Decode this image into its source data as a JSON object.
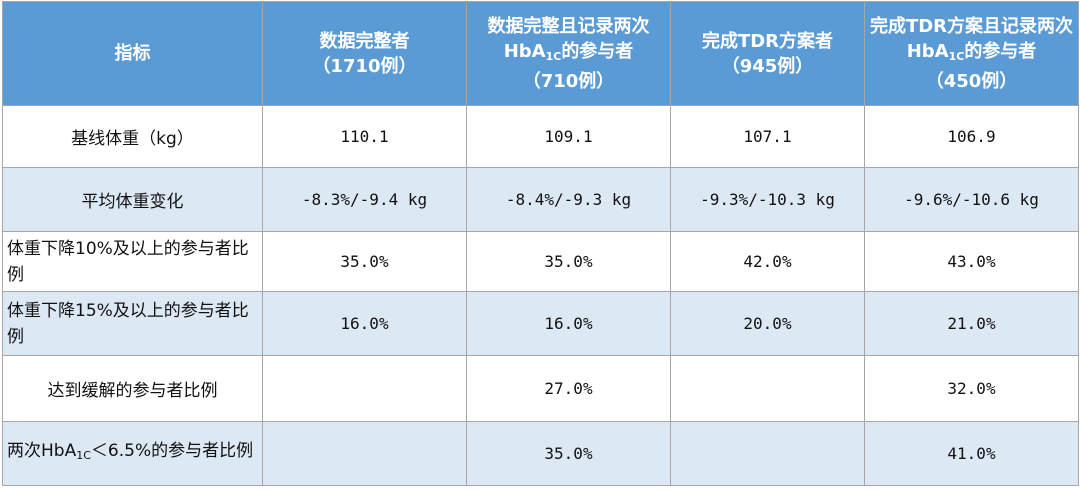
{
  "table": {
    "header": {
      "label": "指标",
      "columns": [
        {
          "name": "数据完整者",
          "count": "（1710例）"
        },
        {
          "name_pre": "数据完整且记录两次HbA",
          "name_sub": "1C",
          "name_post": "的参与者",
          "count": "（710例）"
        },
        {
          "name": "完成TDR方案者",
          "count": "（945例）"
        },
        {
          "name_pre": "完成TDR方案且记录两次HbA",
          "name_sub": "1C",
          "name_post": "的参与者",
          "count": "（450例）"
        }
      ]
    },
    "rows": [
      {
        "label": "基线体重（kg）",
        "values": [
          "110.1",
          "109.1",
          "107.1",
          "106.9"
        ]
      },
      {
        "label": "平均体重变化",
        "values": [
          "-8.3%/-9.4 kg",
          "-8.4%/-9.3 kg",
          "-9.3%/-10.3 kg",
          "-9.6%/-10.6 kg"
        ]
      },
      {
        "label": "体重下降10%及以上的参与者比例",
        "values": [
          "35.0%",
          "35.0%",
          "42.0%",
          "43.0%"
        ]
      },
      {
        "label": "体重下降15%及以上的参与者比例",
        "values": [
          "16.0%",
          "16.0%",
          "20.0%",
          "21.0%"
        ]
      },
      {
        "label": "达到缓解的参与者比例",
        "values": [
          null,
          "27.0%",
          null,
          "32.0%"
        ]
      },
      {
        "label_pre": "两次HbA",
        "label_sub": "1C",
        "label_post": "＜6.5%的参与者比例",
        "values": [
          null,
          "35.0%",
          null,
          "41.0%"
        ]
      }
    ]
  }
}
